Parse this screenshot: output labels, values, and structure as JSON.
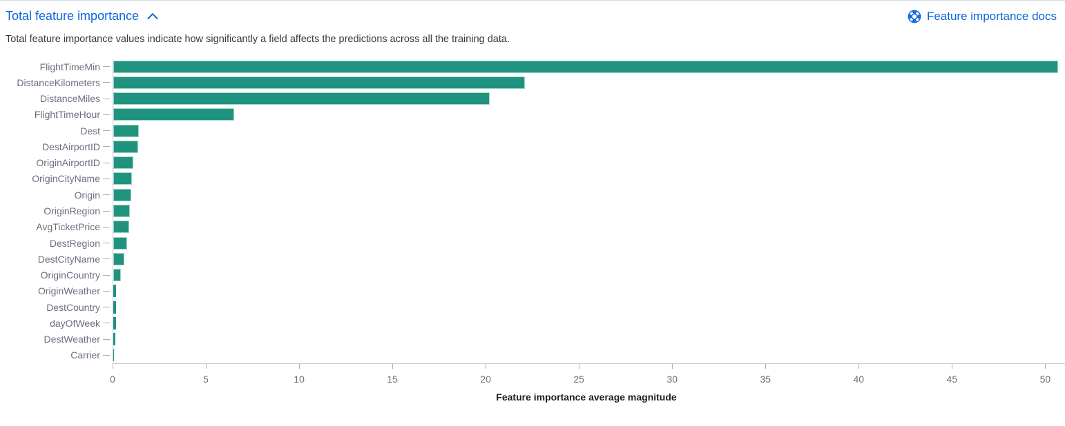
{
  "theme": {
    "link_color": "#0B64DD",
    "bar_color": "#209280",
    "axis_color": "#c5ccd6",
    "tick_color": "#a6aebc",
    "muted_text_color": "#69707D",
    "body_text_color": "#343741"
  },
  "header": {
    "title": "Total feature importance",
    "collapse_icon": "chevron-up-icon",
    "docs_link_label": "Feature importance docs",
    "docs_link_icon": "help-ring-icon"
  },
  "description": "Total feature importance values indicate how significantly a field affects the predictions across all the training data.",
  "chart_data": {
    "type": "bar",
    "orientation": "horizontal",
    "title": "",
    "xlabel": "Feature importance average magnitude",
    "ylabel": "",
    "grid": false,
    "legend": "none",
    "xlim": [
      0,
      50.8
    ],
    "xticks": [
      0,
      5,
      10,
      15,
      20,
      25,
      30,
      35,
      40,
      45,
      50
    ],
    "categories": [
      "FlightTimeMin",
      "DistanceKilometers",
      "DistanceMiles",
      "FlightTimeHour",
      "Dest",
      "DestAirportID",
      "OriginAirportID",
      "OriginCityName",
      "Origin",
      "OriginRegion",
      "AvgTicketPrice",
      "DestRegion",
      "DestCityName",
      "OriginCountry",
      "OriginWeather",
      "DestCountry",
      "dayOfWeek",
      "DestWeather",
      "Carrier"
    ],
    "values": [
      50.7,
      22.1,
      20.2,
      6.5,
      1.37,
      1.33,
      1.09,
      1.0,
      0.96,
      0.89,
      0.86,
      0.74,
      0.6,
      0.41,
      0.16,
      0.16,
      0.15,
      0.1,
      0.04
    ]
  }
}
